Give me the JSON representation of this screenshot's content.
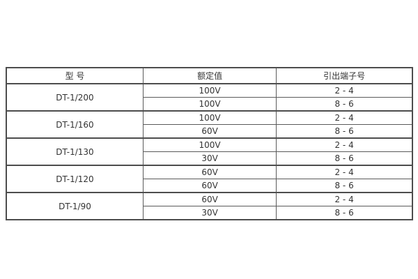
{
  "table": {
    "headers": [
      "型 号",
      "额定值",
      "引出端子号"
    ],
    "groups": [
      {
        "model": "DT-1/200",
        "rows": [
          {
            "rated": "100V",
            "terminal": "2 - 4"
          },
          {
            "rated": "100V",
            "terminal": "8 - 6"
          }
        ]
      },
      {
        "model": "DT-1/160",
        "rows": [
          {
            "rated": "100V",
            "terminal": "2 - 4"
          },
          {
            "rated": "60V",
            "terminal": "8 - 6"
          }
        ]
      },
      {
        "model": "DT-1/130",
        "rows": [
          {
            "rated": "100V",
            "terminal": "2 - 4"
          },
          {
            "rated": "30V",
            "terminal": "8 - 6"
          }
        ]
      },
      {
        "model": "DT-1/120",
        "rows": [
          {
            "rated": "60V",
            "terminal": "2 - 4"
          },
          {
            "rated": "60V",
            "terminal": "8 - 6"
          }
        ]
      },
      {
        "model": "DT-1/90",
        "rows": [
          {
            "rated": "60V",
            "terminal": "2 - 4"
          },
          {
            "rated": "30V",
            "terminal": "8 - 6"
          }
        ]
      }
    ],
    "colors": {
      "border_thick": "#4d4d4d",
      "border_thin": "#5a5a5a",
      "text": "#333333",
      "background": "#ffffff"
    }
  }
}
